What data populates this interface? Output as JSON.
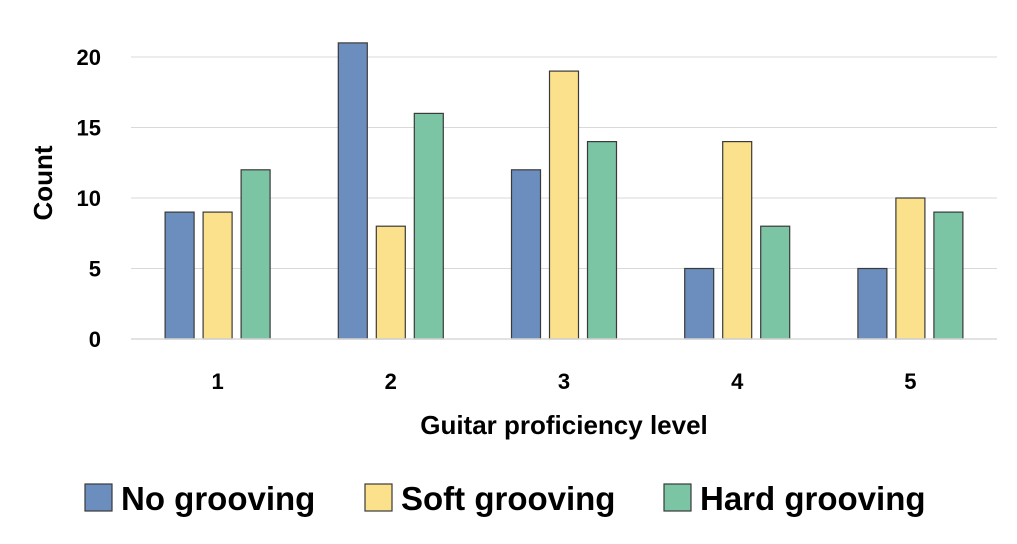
{
  "chart_data": {
    "type": "bar",
    "title": "",
    "xlabel": "Guitar proficiency level",
    "ylabel": "Count",
    "categories": [
      "1",
      "2",
      "3",
      "4",
      "5"
    ],
    "series": [
      {
        "name": "No grooving",
        "color": "#6c8ebf",
        "values": [
          9,
          21,
          12,
          5,
          5
        ]
      },
      {
        "name": "Soft grooving",
        "color": "#fbe18c",
        "values": [
          9,
          8,
          19,
          14,
          10
        ]
      },
      {
        "name": "Hard grooving",
        "color": "#7bc4a4",
        "values": [
          12,
          16,
          14,
          8,
          9
        ]
      }
    ],
    "ylim": [
      0,
      20
    ],
    "yticks": [
      "0",
      "5",
      "10",
      "15",
      "20"
    ],
    "grid": true,
    "legend_position": "bottom"
  }
}
